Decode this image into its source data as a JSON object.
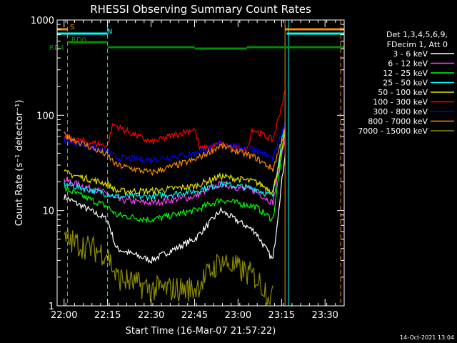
{
  "chart_data": {
    "type": "line",
    "title": "RHESSI Observing Summary Count Rates",
    "xlabel": "Start Time (16-Mar-07 21:57:22)",
    "ylabel": "Count Rate (s⁻¹ detector⁻¹)",
    "yscale": "log",
    "ylim": [
      1,
      1000
    ],
    "y_ticks": [
      {
        "value": 1,
        "label": "1"
      },
      {
        "value": 10,
        "label": "10"
      },
      {
        "value": 100,
        "label": "100"
      },
      {
        "value": 1000,
        "label": "1000"
      }
    ],
    "x_range_minutes": [
      21.96,
      23.61
    ],
    "x_ticks": [
      {
        "value": 22.0,
        "label": "22:00"
      },
      {
        "value": 22.25,
        "label": "22:15"
      },
      {
        "value": 22.5,
        "label": "22:30"
      },
      {
        "value": 22.75,
        "label": "22:45"
      },
      {
        "value": 23.0,
        "label": "23:00"
      },
      {
        "value": 23.25,
        "label": "23:15"
      },
      {
        "value": 23.5,
        "label": "23:30"
      }
    ],
    "grid": false,
    "legend_position": "right",
    "legend_header": [
      "Det 1,3,4,5,6,9,",
      "FDecim 1, Att 0"
    ],
    "series": [
      {
        "name": "3 - 6 keV",
        "color": "#ffffff",
        "x": [
          22.0,
          22.25,
          22.3,
          22.5,
          22.75,
          22.9,
          23.1,
          23.2,
          23.27
        ],
        "y": [
          14,
          8,
          4,
          3,
          5,
          10,
          6,
          3,
          40
        ]
      },
      {
        "name": "6 - 12 keV",
        "color": "#ff40ff",
        "x": [
          22.0,
          22.25,
          22.3,
          22.5,
          22.75,
          22.9,
          23.1,
          23.2,
          23.27
        ],
        "y": [
          21,
          15,
          13,
          12,
          14,
          19,
          16,
          12,
          60
        ]
      },
      {
        "name": "12 - 25 keV",
        "color": "#00ff00",
        "x": [
          22.0,
          22.25,
          22.3,
          22.5,
          22.75,
          22.9,
          23.1,
          23.2,
          23.27
        ],
        "y": [
          17,
          11,
          9,
          8,
          10,
          13,
          11,
          8,
          70
        ]
      },
      {
        "name": "25 - 50 keV",
        "color": "#00ffff",
        "x": [
          22.0,
          22.25,
          22.3,
          22.5,
          22.75,
          22.9,
          23.1,
          23.2,
          23.27
        ],
        "y": [
          19,
          15,
          14,
          14,
          16,
          19,
          17,
          14,
          90
        ]
      },
      {
        "name": "50 - 100 keV",
        "color": "#e6e600",
        "x": [
          22.0,
          22.25,
          22.3,
          22.5,
          22.75,
          22.9,
          23.1,
          23.2,
          23.27
        ],
        "y": [
          25,
          19,
          16,
          16,
          18,
          23,
          20,
          16,
          60
        ]
      },
      {
        "name": "100 - 300 keV",
        "color": "#ff0000",
        "x": [
          22.0,
          22.25,
          22.28,
          22.5,
          22.75,
          22.78,
          22.9,
          23.05,
          23.08,
          23.2,
          23.27
        ],
        "y": [
          58,
          48,
          80,
          52,
          72,
          44,
          50,
          42,
          72,
          55,
          175
        ]
      },
      {
        "name": "300 - 800 keV",
        "color": "#0000ff",
        "x": [
          22.0,
          22.25,
          22.3,
          22.5,
          22.75,
          22.9,
          23.1,
          23.2,
          23.27
        ],
        "y": [
          55,
          42,
          36,
          34,
          40,
          50,
          44,
          35,
          80
        ]
      },
      {
        "name": "800 - 7000 keV",
        "color": "#ff8c00",
        "x": [
          22.0,
          22.25,
          22.3,
          22.5,
          22.75,
          22.9,
          23.1,
          23.2,
          23.27
        ],
        "y": [
          62,
          38,
          30,
          25,
          34,
          48,
          36,
          27,
          70
        ]
      },
      {
        "name": "7000 - 15000 keV",
        "color": "#8c8c00",
        "x": [
          22.0,
          22.25,
          22.3,
          22.5,
          22.75,
          22.9,
          23.1,
          23.2
        ],
        "y": [
          5,
          3.5,
          2,
          1.5,
          1.5,
          3,
          2,
          1.2
        ]
      }
    ],
    "flag_bars": [
      {
        "label": "S",
        "color": "#ff8c00",
        "segments": [
          [
            21.96,
            22.02
          ],
          [
            23.27,
            23.61
          ]
        ]
      },
      {
        "label": "N",
        "color": "#00ffff",
        "segments": [
          [
            21.96,
            22.25
          ],
          [
            23.28,
            23.61
          ]
        ]
      },
      {
        "label": "RD0",
        "color": "#008c00",
        "segments": [
          [
            22.02,
            22.25
          ]
        ]
      },
      {
        "label": "RD4",
        "color": "#008c00",
        "segments": [
          [
            22.25,
            22.75
          ],
          [
            22.75,
            23.05
          ],
          [
            23.05,
            23.61
          ]
        ]
      }
    ],
    "vertical_markers": [
      {
        "x": 21.96,
        "color": "#00ffff",
        "style": "solid"
      },
      {
        "x": 22.02,
        "color": "#ff8c00",
        "style": "dashed"
      },
      {
        "x": 22.25,
        "color": "#00ffff",
        "style": "dashed"
      },
      {
        "x": 23.27,
        "color": "#ff8c00",
        "style": "solid"
      },
      {
        "x": 23.29,
        "color": "#00ffff",
        "style": "solid"
      },
      {
        "x": 23.59,
        "color": "#ff8c00",
        "style": "dashed"
      }
    ]
  },
  "footer_timestamp": "14-Oct-2021 13:04"
}
